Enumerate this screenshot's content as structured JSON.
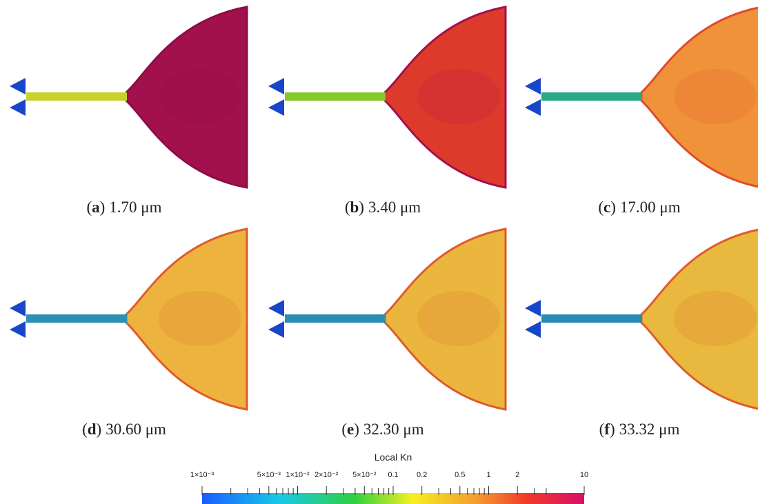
{
  "caption_brackets": [
    "(",
    ")"
  ],
  "panels": [
    {
      "letter": "a",
      "text": "1.70 μm",
      "plume_color": "#a3104e",
      "edge_color": "#8e0c46",
      "channel_color": "#c9d22c"
    },
    {
      "letter": "b",
      "text": "3.40 μm",
      "plume_color": "#de3a2c",
      "edge_color": "#a3104e",
      "channel_color": "#86c92b"
    },
    {
      "letter": "c",
      "text": "17.00 μm",
      "plume_color": "#f0923a",
      "edge_color": "#e04a2a",
      "channel_color": "#2aa888"
    },
    {
      "letter": "d",
      "text": "30.60 μm",
      "plume_color": "#ecb43e",
      "edge_color": "#e05a2a",
      "channel_color": "#2b90b2"
    },
    {
      "letter": "e",
      "text": "32.30 μm",
      "plume_color": "#eab63e",
      "edge_color": "#e05a2a",
      "channel_color": "#2b8cb4"
    },
    {
      "letter": "f",
      "text": "33.32 μm",
      "plume_color": "#e9b83e",
      "edge_color": "#e05a2a",
      "channel_color": "#2b8ab4"
    }
  ],
  "colorbar": {
    "title": "Local Kn",
    "log_scale": true,
    "lim": [
      0.001,
      10
    ],
    "ticks": [
      {
        "value": 0.001,
        "label": "1×10⁻³"
      },
      {
        "value": 0.005,
        "label": "5×10⁻³"
      },
      {
        "value": 0.01,
        "label": "1×10⁻²"
      },
      {
        "value": 0.02,
        "label": "2×10⁻²"
      },
      {
        "value": 0.05,
        "label": "5×10⁻²"
      },
      0.1,
      0.2,
      0.5,
      1,
      2,
      10
    ],
    "minor_ticks": [
      0.002,
      0.003,
      0.004,
      0.006,
      0.007,
      0.008,
      0.009,
      0.03,
      0.04,
      0.06,
      0.07,
      0.08,
      0.09,
      0.3,
      0.4,
      0.6,
      0.7,
      0.8,
      0.9,
      3,
      4
    ]
  }
}
